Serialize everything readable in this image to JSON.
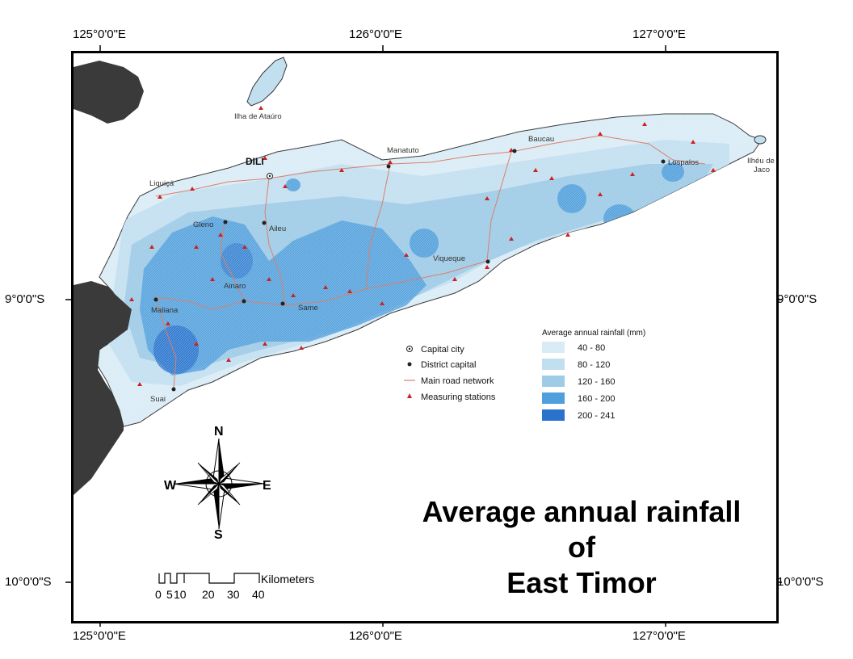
{
  "graticule": {
    "lon_labels": [
      "125°0'0\"E",
      "126°0'0\"E",
      "127°0'0\"E"
    ],
    "lat_labels": [
      "9°0'0\"S",
      "10°0'0\"S"
    ]
  },
  "places": {
    "atauro": "Ilha de Ataúro",
    "dili": "DILI",
    "liquica": "Liquiçá",
    "manatuto": "Manatuto",
    "baucau": "Baucau",
    "lospalos": "Lospalos",
    "jaco": "Ilhéu de Jaco",
    "ermera": "Gleno",
    "aileu": "Aileu",
    "ainaro": "Ainaro",
    "same": "Same",
    "viqueque": "Viqueque",
    "maliana": "Maliana",
    "suai": "Suai"
  },
  "symbols": {
    "capital_city": "Capital city",
    "district_capital": "District capital",
    "main_road": "Main road network",
    "stations": "Measuring stations"
  },
  "legend": {
    "title": "Average annual rainfall (mm)",
    "classes": [
      {
        "label": "40 - 80",
        "color": "#d9ecf6"
      },
      {
        "label": "80 - 120",
        "color": "#c2dff0"
      },
      {
        "label": "120 - 160",
        "color": "#9ecbe6"
      },
      {
        "label": "160 - 200",
        "color": "#4f9fdc"
      },
      {
        "label": "200 - 241",
        "color": "#2a72cc"
      }
    ]
  },
  "compass": {
    "n": "N",
    "s": "S",
    "e": "E",
    "w": "W"
  },
  "scalebar": {
    "unit": "Kilometers",
    "ticks": [
      "0",
      "5",
      "10",
      "20",
      "30",
      "40"
    ]
  },
  "title": {
    "line1": "Average annual rainfall",
    "line2": "of",
    "line3": "East Timor"
  },
  "colors": {
    "land_other": "#3a3a3a",
    "sea": "#ffffff",
    "road": "#d9806b",
    "station": "#cc2222"
  }
}
